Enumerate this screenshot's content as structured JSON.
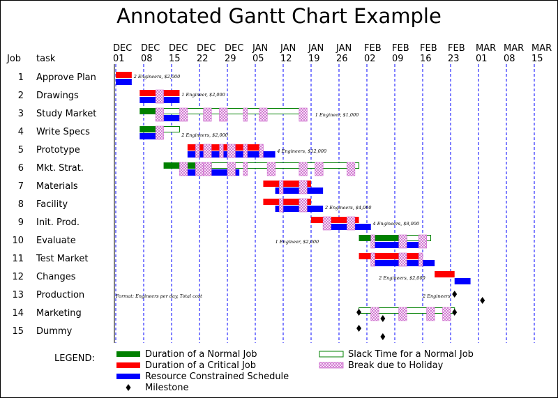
{
  "chart_data": {
    "type": "gantt",
    "title": "Annotated Gantt Chart Example",
    "column_headers": {
      "job": "Job",
      "task": "task"
    },
    "time_axis": {
      "ticks": [
        {
          "month": "DEC",
          "day": "01"
        },
        {
          "month": "DEC",
          "day": "08"
        },
        {
          "month": "DEC",
          "day": "15"
        },
        {
          "month": "DEC",
          "day": "22"
        },
        {
          "month": "DEC",
          "day": "29"
        },
        {
          "month": "JAN",
          "day": "05"
        },
        {
          "month": "JAN",
          "day": "12"
        },
        {
          "month": "JAN",
          "day": "19"
        },
        {
          "month": "JAN",
          "day": "26"
        },
        {
          "month": "FEB",
          "day": "02"
        },
        {
          "month": "FEB",
          "day": "09"
        },
        {
          "month": "FEB",
          "day": "16"
        },
        {
          "month": "FEB",
          "day": "23"
        },
        {
          "month": "MAR",
          "day": "01"
        },
        {
          "month": "MAR",
          "day": "08"
        },
        {
          "month": "MAR",
          "day": "15"
        }
      ],
      "grid": "dashed vertical lines at weekly ticks"
    },
    "colors": {
      "normal": "#008000",
      "critical": "#ff0000",
      "resource": "#0000ff",
      "slack_outline": "#008000",
      "holiday": "#cc66cc",
      "milestone": "#000000"
    },
    "jobs": [
      {
        "job": "1",
        "task": "Approve Plan",
        "crit": [
          [
            0,
            4
          ]
        ],
        "res": [
          [
            0,
            4
          ]
        ],
        "annotation": {
          "text": "2 Engineers, $2,000",
          "x": 4.5,
          "lane": "top"
        }
      },
      {
        "job": "2",
        "task": "Drawings",
        "crit": [
          [
            6,
            16
          ]
        ],
        "res": [
          [
            6,
            16
          ]
        ],
        "hol": [
          [
            10,
            12
          ]
        ],
        "annotation": {
          "text": "1 Engineer, $2,000",
          "x": 16.5,
          "lane": "top"
        }
      },
      {
        "job": "3",
        "task": "Study Market",
        "norm": [
          [
            6,
            10
          ]
        ],
        "slack": [
          [
            10,
            47
          ]
        ],
        "res": [
          [
            12,
            16
          ]
        ],
        "hol": [
          [
            10,
            12
          ],
          [
            16,
            18
          ],
          [
            22,
            24
          ],
          [
            26,
            28
          ],
          [
            32,
            33
          ],
          [
            36,
            38
          ],
          [
            46,
            48
          ]
        ],
        "annotation": {
          "text": "1 Engineer, $1,000",
          "x": 50,
          "lane": "mid"
        }
      },
      {
        "job": "4",
        "task": "Write Specs",
        "norm": [
          [
            6,
            10
          ]
        ],
        "slack": [
          [
            10,
            16
          ]
        ],
        "res": [
          [
            6,
            10
          ]
        ],
        "hol": [
          [
            10,
            12
          ]
        ],
        "annotation": {
          "text": "2 Engineers, $2,000",
          "x": 16.5,
          "lane": "bottom"
        }
      },
      {
        "job": "5",
        "task": "Prototype",
        "crit": [
          [
            18,
            37
          ]
        ],
        "res": [
          [
            18,
            40
          ]
        ],
        "hol": [
          [
            20,
            21
          ],
          [
            22,
            24
          ],
          [
            26,
            27
          ],
          [
            28,
            30
          ],
          [
            32,
            33
          ],
          [
            36,
            37
          ]
        ],
        "annotation": {
          "text": "4 Engineers, $12,000",
          "x": 40.5,
          "lane": "mid"
        }
      },
      {
        "job": "6",
        "task": "Mkt. Strat.",
        "norm": [
          [
            12,
            24
          ]
        ],
        "slack": [
          [
            24,
            61
          ]
        ],
        "res": [
          [
            18,
            31
          ]
        ],
        "hol": [
          [
            16,
            18
          ],
          [
            20,
            22
          ],
          [
            22,
            24
          ],
          [
            28,
            30
          ],
          [
            32,
            33
          ],
          [
            38,
            40
          ],
          [
            46,
            48
          ],
          [
            50,
            52
          ],
          [
            58,
            60
          ]
        ]
      },
      {
        "job": "7",
        "task": "Materials",
        "crit": [
          [
            37,
            49
          ]
        ],
        "res": [
          [
            40,
            52
          ]
        ],
        "hol": [
          [
            41,
            42
          ],
          [
            46,
            48
          ]
        ]
      },
      {
        "job": "8",
        "task": "Facility",
        "crit": [
          [
            37,
            49
          ]
        ],
        "res": [
          [
            40,
            52
          ]
        ],
        "hol": [
          [
            41,
            42
          ],
          [
            46,
            48
          ]
        ],
        "annotation": {
          "text": "2 Engineers, $4,000",
          "x": 52.5,
          "lane": "bottom"
        }
      },
      {
        "job": "9",
        "task": "Init. Prod.",
        "crit": [
          [
            49,
            61
          ]
        ],
        "res": [
          [
            52,
            64
          ]
        ],
        "hol": [
          [
            52,
            54
          ],
          [
            58,
            60
          ]
        ],
        "annotation": {
          "text": "4 Engineers, $8,000",
          "x": 64.5,
          "lane": "mid"
        }
      },
      {
        "job": "10",
        "task": "Evaluate",
        "norm": [
          [
            61,
            73
          ]
        ],
        "slack": [
          [
            73,
            79
          ]
        ],
        "res": [
          [
            64,
            76
          ]
        ],
        "hol": [
          [
            64,
            65
          ],
          [
            71,
            73
          ],
          [
            76,
            78
          ]
        ],
        "annotation": {
          "text": "1 Engineer, $2,000",
          "x": 40,
          "lane": "mid"
        }
      },
      {
        "job": "11",
        "task": "Test Market",
        "crit": [
          [
            61,
            76
          ]
        ],
        "res": [
          [
            64,
            80
          ]
        ],
        "hol": [
          [
            64,
            65
          ],
          [
            71,
            73
          ],
          [
            76,
            77
          ]
        ]
      },
      {
        "job": "12",
        "task": "Changes",
        "crit": [
          [
            80,
            85
          ]
        ],
        "res": [
          [
            85,
            89
          ]
        ],
        "annotation": {
          "text": "2 Engineers, $2,000",
          "x": 66,
          "lane": "mid"
        }
      },
      {
        "job": "13",
        "task": "Production",
        "milestones": [
          [
            85,
            "mid"
          ],
          [
            92,
            "bottom"
          ]
        ],
        "annotation": {
          "text": "2 Engineers",
          "x": 77,
          "lane": "mid"
        }
      },
      {
        "job": "14",
        "task": "Marketing",
        "slack": [
          [
            61,
            85
          ]
        ],
        "hol": [
          [
            64,
            66
          ],
          [
            71,
            73
          ],
          [
            78,
            80
          ],
          [
            82,
            84
          ]
        ],
        "milestones": [
          [
            61,
            "mid"
          ],
          [
            85,
            "mid"
          ],
          [
            67,
            "bottom"
          ]
        ]
      },
      {
        "job": "15",
        "task": "Dummy",
        "milestones": [
          [
            61,
            "top"
          ],
          [
            67,
            "bottom"
          ]
        ]
      }
    ],
    "footnote": "Format: Engineers per day, Total cost",
    "legend": {
      "heading": "LEGEND:",
      "items": [
        {
          "key": "normal",
          "label": "Duration of a Normal Job"
        },
        {
          "key": "critical",
          "label": "Duration of a Critical Job"
        },
        {
          "key": "resource",
          "label": "Resource Constrained Schedule"
        },
        {
          "key": "milestone",
          "label": "Milestone"
        },
        {
          "key": "slack",
          "label": "Slack Time for a Normal Job"
        },
        {
          "key": "holiday",
          "label": "Break due to Holiday"
        }
      ]
    }
  }
}
